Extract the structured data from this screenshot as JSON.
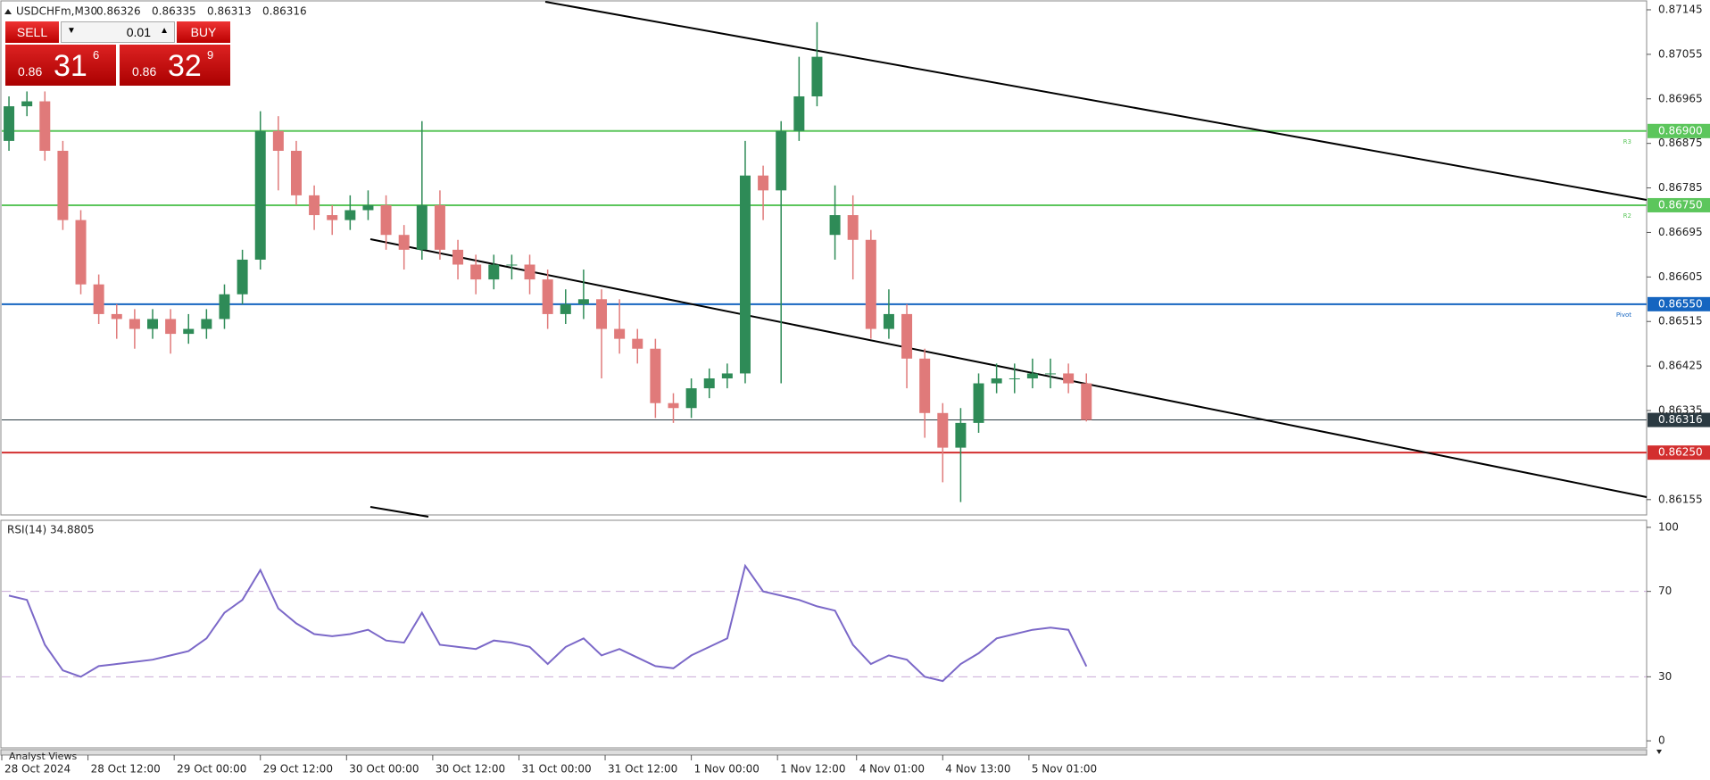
{
  "chart_data": {
    "type": "candlestick",
    "title": "USDCHFm,M30",
    "quote": [
      0.86326,
      0.86335,
      0.86313,
      0.86316
    ],
    "x": [
      2,
      7,
      12,
      17,
      22,
      27,
      32,
      37,
      42,
      47,
      52,
      57,
      62,
      67,
      72,
      77,
      82,
      87,
      92,
      97,
      102,
      107,
      112,
      117,
      122,
      127,
      132,
      137,
      142,
      147,
      152,
      157,
      162,
      167,
      172,
      177,
      182,
      187,
      192,
      197,
      202,
      207,
      212,
      217,
      222,
      227,
      232,
      237,
      242,
      247,
      252,
      257,
      262,
      267,
      272,
      277,
      282,
      287,
      292,
      297,
      302
    ],
    "open": [
      0.8688,
      0.8695,
      0.8696,
      0.8686,
      0.8672,
      0.8659,
      0.8653,
      0.8652,
      0.865,
      0.8652,
      0.8649,
      0.865,
      0.8652,
      0.8657,
      0.8664,
      0.869,
      0.8686,
      0.8677,
      0.8673,
      0.8672,
      0.8674,
      0.8675,
      0.8669,
      0.8666,
      0.8675,
      0.8666,
      0.8663,
      0.866,
      0.8663,
      0.8663,
      0.866,
      0.8653,
      0.8655,
      0.8656,
      0.865,
      0.8648,
      0.8646,
      0.8635,
      0.8634,
      0.8638,
      0.864,
      0.8641,
      0.8681,
      0.8678,
      0.869,
      0.8697,
      0.8669,
      0.8673,
      0.8668,
      0.865,
      0.8653,
      0.8644,
      0.8633,
      0.8626,
      0.8631,
      0.8639,
      0.864,
      0.864,
      0.8641,
      0.8641,
      0.8639
    ],
    "high": [
      0.8697,
      0.8698,
      0.8698,
      0.8688,
      0.8674,
      0.8661,
      0.8655,
      0.8654,
      0.8654,
      0.8654,
      0.8653,
      0.8654,
      0.8659,
      0.8666,
      0.8694,
      0.8693,
      0.8688,
      0.8679,
      0.8675,
      0.8677,
      0.8678,
      0.8677,
      0.8671,
      0.8692,
      0.8678,
      0.8668,
      0.8665,
      0.8665,
      0.8665,
      0.8665,
      0.8662,
      0.8658,
      0.8662,
      0.8658,
      0.8656,
      0.865,
      0.8648,
      0.8637,
      0.864,
      0.8642,
      0.8643,
      0.8688,
      0.8683,
      0.8692,
      0.8705,
      0.8712,
      0.8679,
      0.8677,
      0.867,
      0.8658,
      0.8655,
      0.8646,
      0.8635,
      0.8634,
      0.8641,
      0.8643,
      0.8643,
      0.8644,
      0.8644,
      0.8643,
      0.8641
    ],
    "low": [
      0.8686,
      0.8693,
      0.8684,
      0.867,
      0.8657,
      0.8651,
      0.8648,
      0.8646,
      0.8648,
      0.8645,
      0.8647,
      0.8648,
      0.865,
      0.8655,
      0.8662,
      0.8678,
      0.8675,
      0.867,
      0.8669,
      0.867,
      0.8672,
      0.8666,
      0.8662,
      0.8664,
      0.8664,
      0.866,
      0.8657,
      0.8658,
      0.866,
      0.8657,
      0.865,
      0.8651,
      0.8652,
      0.864,
      0.8645,
      0.8643,
      0.8632,
      0.8631,
      0.8632,
      0.8636,
      0.8638,
      0.8639,
      0.8672,
      0.8639,
      0.8688,
      0.8695,
      0.8664,
      0.866,
      0.8648,
      0.8648,
      0.8638,
      0.8628,
      0.8619,
      0.8615,
      0.8629,
      0.8637,
      0.8637,
      0.8638,
      0.8638,
      0.8637,
      0.86313
    ],
    "close": [
      0.8695,
      0.8696,
      0.8686,
      0.8672,
      0.8659,
      0.8653,
      0.8652,
      0.865,
      0.8652,
      0.8649,
      0.865,
      0.8652,
      0.8657,
      0.8664,
      0.869,
      0.8686,
      0.8677,
      0.8673,
      0.8672,
      0.8674,
      0.8675,
      0.8669,
      0.8666,
      0.8675,
      0.8666,
      0.8663,
      0.866,
      0.8663,
      0.8663,
      0.866,
      0.8653,
      0.8655,
      0.8656,
      0.865,
      0.8648,
      0.8646,
      0.8635,
      0.8634,
      0.8638,
      0.864,
      0.8641,
      0.8681,
      0.8678,
      0.869,
      0.8697,
      0.8705,
      0.8673,
      0.8668,
      0.865,
      0.8653,
      0.8644,
      0.8633,
      0.8626,
      0.8631,
      0.8639,
      0.864,
      0.864,
      0.8641,
      0.8641,
      0.8639,
      0.86316
    ],
    "up_color": "#2e8b57",
    "down_color": "#e07a7a",
    "xlim": [
      0,
      458
    ],
    "ylim": [
      0.86124,
      0.87163
    ],
    "yticks": [
      0.87145,
      0.87055,
      0.86965,
      0.86875,
      0.86785,
      0.86695,
      0.86605,
      0.86515,
      0.86425,
      0.86335,
      0.86155
    ],
    "xticks": [
      {
        "value": 0,
        "label": "28 Oct 2024"
      },
      {
        "value": 24,
        "label": "28 Oct 12:00"
      },
      {
        "value": 48,
        "label": "29 Oct 00:00"
      },
      {
        "value": 72,
        "label": "29 Oct 12:00"
      },
      {
        "value": 96,
        "label": "30 Oct 00:00"
      },
      {
        "value": 120,
        "label": "30 Oct 12:00"
      },
      {
        "value": 144,
        "label": "31 Oct 00:00"
      },
      {
        "value": 168,
        "label": "31 Oct 12:00"
      },
      {
        "value": 192,
        "label": "1 Nov 00:00"
      },
      {
        "value": 216,
        "label": "1 Nov 12:00"
      },
      {
        "value": 238,
        "label": "4 Nov 01:00"
      },
      {
        "value": 262,
        "label": "4 Nov 13:00"
      },
      {
        "value": 286,
        "label": "5 Nov 01:00"
      }
    ],
    "levels": [
      {
        "name": "R3",
        "value": 0.869,
        "label": "0.86900",
        "color": "#5cc65c"
      },
      {
        "name": "R2",
        "value": 0.8675,
        "label": "0.86750",
        "color": "#5cc65c"
      },
      {
        "name": "Pivot",
        "value": 0.8655,
        "label": "0.86550",
        "color": "#1565c0"
      },
      {
        "value": 0.8625,
        "label": "0.86250",
        "color": "#d32f2f"
      }
    ],
    "current": {
      "value": 0.86316,
      "label": "0.86316",
      "color": "#2b3a42"
    },
    "rsi": {
      "title": "RSI(14) 34.8805",
      "color": "#7b68c8",
      "ylim": [
        -3.3,
        103.3
      ],
      "yticks": [
        100,
        70,
        30,
        0
      ],
      "levels": [
        70,
        30
      ],
      "values": [
        68,
        66,
        45,
        33,
        30,
        35,
        36,
        37,
        38,
        40,
        42,
        48,
        60,
        66,
        80,
        62,
        55,
        50,
        49,
        50,
        52,
        47,
        46,
        60,
        45,
        44,
        43,
        47,
        46,
        44,
        36,
        44,
        48,
        40,
        43,
        39,
        35,
        34,
        40,
        44,
        48,
        82,
        70,
        68,
        66,
        63,
        61,
        45,
        36,
        40,
        38,
        30,
        28,
        36,
        41,
        48,
        50,
        52,
        53,
        52,
        34.8805
      ]
    }
  },
  "trade_panel": {
    "sell": "SELL",
    "buy": "BUY",
    "lot": "0.01",
    "bid": {
      "big": "0.86",
      "pips": "31",
      "frac": "6"
    },
    "ask": {
      "big": "0.86",
      "pips": "32",
      "frac": "9"
    }
  },
  "tab": "Analyst Views"
}
